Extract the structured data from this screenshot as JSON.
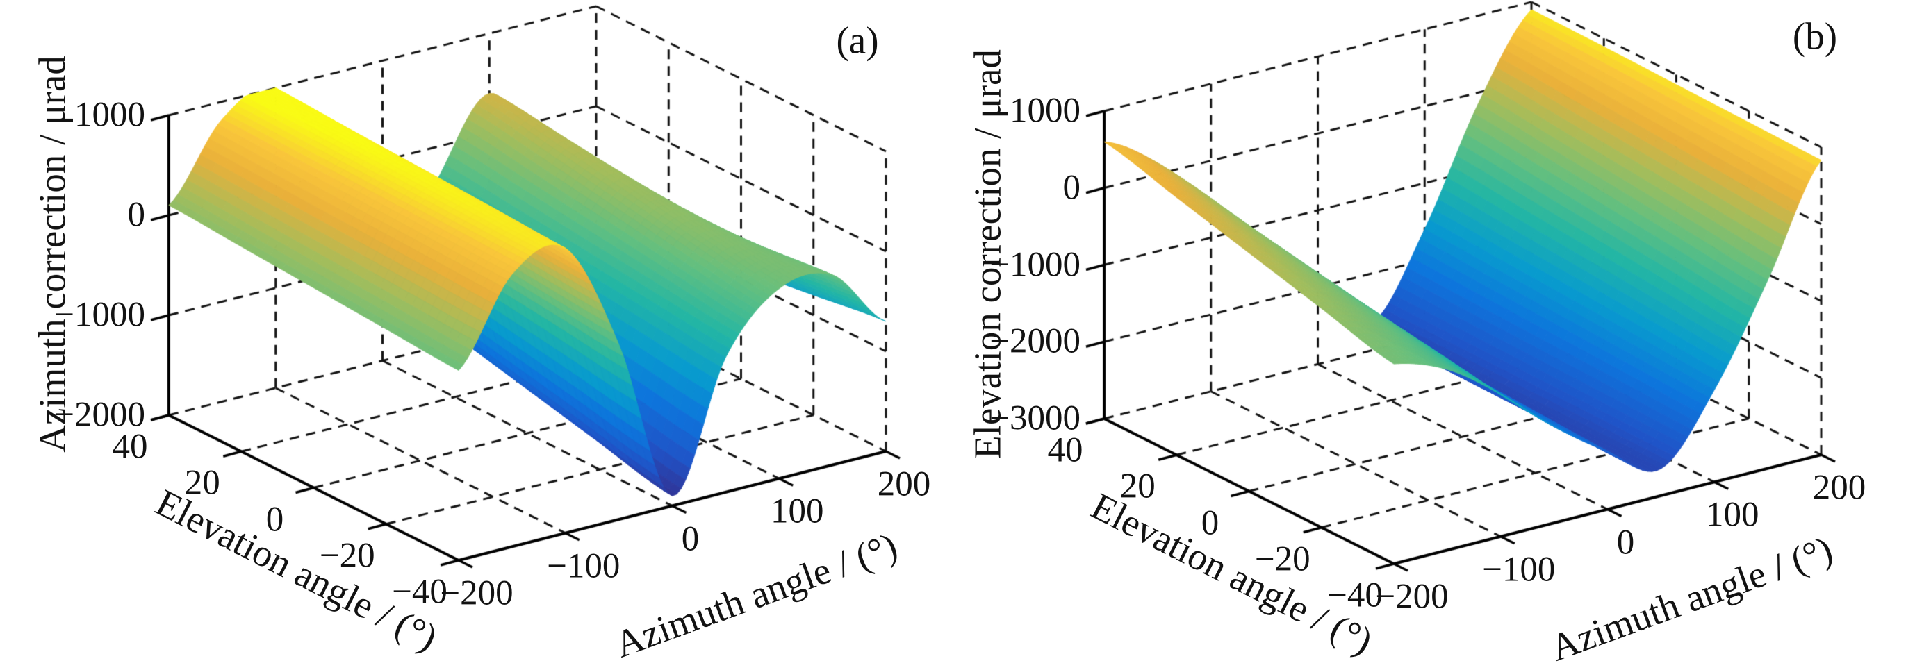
{
  "figure": {
    "background": "#ffffff",
    "panels": [
      {
        "label": "(a)"
      },
      {
        "label": "(b)"
      }
    ]
  },
  "chart_data": [
    {
      "type": "surface",
      "title": "(a)",
      "xlabel": "Azimuth angle / (°)",
      "ylabel": "Elevation angle / (°)",
      "zlabel": "Azimuth correction / μrad",
      "xlim": [
        -200,
        200
      ],
      "ylim": [
        -40,
        40
      ],
      "zlim": [
        -2000,
        1000
      ],
      "x_tick_values": [
        -200,
        -100,
        0,
        100,
        200
      ],
      "x_tick_labels": [
        "−200",
        "−100",
        "0",
        "100",
        "200"
      ],
      "y_tick_values": [
        40,
        20,
        0,
        -20,
        -40
      ],
      "y_tick_labels": [
        "40",
        "20",
        "0",
        "−20",
        "−40"
      ],
      "z_tick_values": [
        1000,
        0,
        -1000,
        -2000
      ],
      "z_tick_labels": [
        "1000",
        "0",
        "−1000",
        "−2000"
      ],
      "x": [
        -200,
        -150,
        -100,
        -50,
        0,
        50,
        100,
        150,
        200
      ],
      "y": [
        40,
        20,
        0,
        -20,
        -40
      ],
      "z": [
        [
          100,
          825,
          1000,
          50,
          -1200,
          -350,
          400,
          -400,
          -1100
        ],
        [
          50,
          800,
          960,
          -25,
          -1375,
          -425,
          280,
          -325,
          -1000
        ],
        [
          0,
          775,
          925,
          -100,
          -1550,
          -500,
          150,
          -250,
          -900
        ],
        [
          -50,
          750,
          890,
          -175,
          -1725,
          -575,
          20,
          -175,
          -800
        ],
        [
          -100,
          725,
          850,
          -250,
          -1900,
          -650,
          -100,
          -100,
          -700
        ]
      ],
      "view": {
        "azimuth": -37.5,
        "elevation": 30
      },
      "grid": "dashed",
      "legend": "none",
      "colormap": "parula"
    },
    {
      "type": "surface",
      "title": "(b)",
      "xlabel": "Azimuth angle / (°)",
      "ylabel": "Elevation angle / (°)",
      "zlabel": "Elevation correction / μrad",
      "xlim": [
        -200,
        200
      ],
      "ylim": [
        -40,
        40
      ],
      "zlim": [
        -3000,
        1000
      ],
      "x_tick_values": [
        -200,
        -100,
        0,
        100,
        200
      ],
      "x_tick_labels": [
        "−200",
        "−100",
        "0",
        "100",
        "200"
      ],
      "y_tick_values": [
        40,
        20,
        0,
        -20,
        -40
      ],
      "y_tick_labels": [
        "40",
        "20",
        "0",
        "−20",
        "−40"
      ],
      "z_tick_values": [
        1000,
        0,
        -1000,
        -2000,
        -3000
      ],
      "z_tick_labels": [
        "1000",
        "0",
        "−1000",
        "−2000",
        "−3000"
      ],
      "x": [
        -200,
        -150,
        -100,
        -50,
        0,
        50,
        100,
        150,
        200
      ],
      "y": [
        40,
        20,
        0,
        -20,
        -40
      ],
      "z": [
        [
          600,
          150,
          -550,
          -1350,
          -2050,
          -2650,
          -1600,
          -150,
          900
        ],
        [
          350,
          -50,
          -700,
          -1450,
          -2100,
          -2650,
          -1650,
          -250,
          890
        ],
        [
          100,
          -250,
          -850,
          -1550,
          -2150,
          -2650,
          -1700,
          -350,
          870
        ],
        [
          -150,
          -450,
          -1000,
          -1650,
          -2200,
          -2650,
          -1750,
          -450,
          850
        ],
        [
          -400,
          -650,
          -1150,
          -1750,
          -2250,
          -2650,
          -1800,
          -550,
          830
        ]
      ],
      "view": {
        "azimuth": -37.5,
        "elevation": 30
      },
      "grid": "dashed",
      "legend": "none",
      "colormap": "parula"
    }
  ],
  "style": {
    "grid_color": "#141414",
    "axis_color": "#000000",
    "text_color": "#121212",
    "colormap_stops": [
      [
        0.0,
        "#352a87"
      ],
      [
        0.12,
        "#2053c7"
      ],
      [
        0.25,
        "#0d75dc"
      ],
      [
        0.37,
        "#089bce"
      ],
      [
        0.5,
        "#23b6a4"
      ],
      [
        0.62,
        "#63bf7f"
      ],
      [
        0.73,
        "#a2bd5c"
      ],
      [
        0.84,
        "#e9b03a"
      ],
      [
        0.93,
        "#f9c63a"
      ],
      [
        1.0,
        "#f9fb14"
      ]
    ]
  }
}
